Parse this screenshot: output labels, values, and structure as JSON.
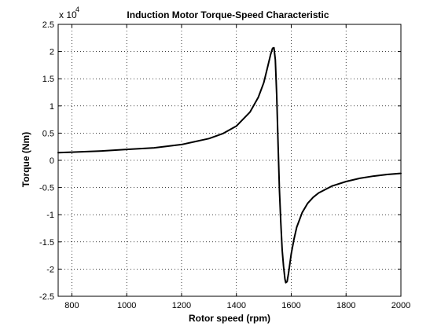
{
  "chart_data": {
    "type": "line",
    "title": "Induction Motor Torque-Speed Characteristic",
    "xlabel": "Rotor speed (rpm)",
    "ylabel": "Torque (Nm)",
    "exponent_label": "x 10",
    "exponent_power": "4",
    "xlim": [
      750,
      2000
    ],
    "ylim": [
      -2.5,
      2.5
    ],
    "y_scale_factor": 10000,
    "grid": true,
    "grid_style": "dotted",
    "x_ticks": [
      800,
      1000,
      1200,
      1400,
      1600,
      1800,
      2000
    ],
    "x_tick_labels": [
      "800",
      "1000",
      "1200",
      "1400",
      "1600",
      "1800",
      "2000"
    ],
    "y_ticks": [
      -2.5,
      -2,
      -1.5,
      -1,
      -0.5,
      0,
      0.5,
      1,
      1.5,
      2,
      2.5
    ],
    "y_tick_labels": [
      "-2.5",
      "-2",
      "-1.5",
      "-1",
      "-0.5",
      "0",
      "0.5",
      "1",
      "1.5",
      "2",
      "2.5"
    ],
    "line_color": "#000000",
    "series": [
      {
        "x": [
          750,
          800,
          900,
          1000,
          1100,
          1200,
          1300,
          1350,
          1400,
          1450,
          1480,
          1500,
          1515,
          1525,
          1532,
          1537,
          1542,
          1547,
          1552,
          1557,
          1562,
          1567,
          1572,
          1577,
          1580,
          1585,
          1590,
          1595,
          1600,
          1610,
          1620,
          1640,
          1660,
          1680,
          1700,
          1750,
          1800,
          1850,
          1900,
          1950,
          2000
        ],
        "values": [
          0.14,
          0.15,
          0.17,
          0.2,
          0.23,
          0.29,
          0.4,
          0.49,
          0.63,
          0.89,
          1.16,
          1.43,
          1.74,
          1.95,
          2.06,
          2.07,
          1.85,
          1.2,
          0.3,
          -0.55,
          -1.15,
          -1.65,
          -1.95,
          -2.18,
          -2.25,
          -2.23,
          -2.08,
          -1.9,
          -1.72,
          -1.45,
          -1.23,
          -0.96,
          -0.79,
          -0.68,
          -0.6,
          -0.47,
          -0.39,
          -0.33,
          -0.29,
          -0.26,
          -0.24
        ]
      }
    ]
  }
}
